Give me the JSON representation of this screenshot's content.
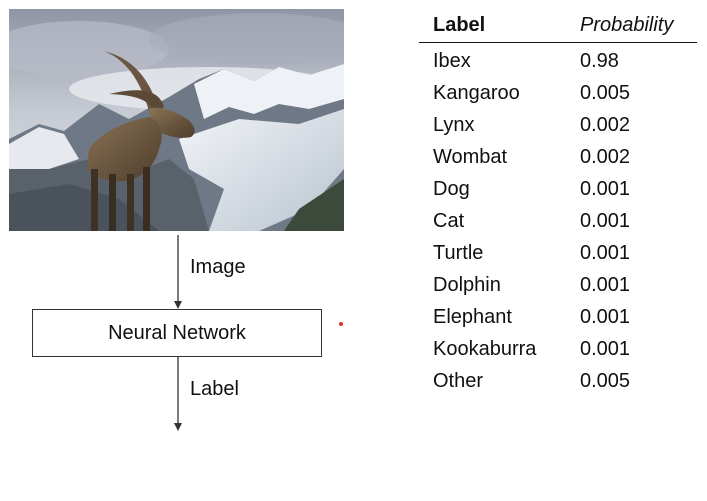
{
  "diagram": {
    "edge_image_label": "Image",
    "node_label": "Neural Network",
    "edge_output_label": "Label",
    "accent_dot_color": "#e0302a"
  },
  "table": {
    "headers": [
      "Label",
      "Probability"
    ],
    "rows": [
      {
        "label": "Ibex",
        "probability": "0.98"
      },
      {
        "label": "Kangaroo",
        "probability": "0.005"
      },
      {
        "label": "Lynx",
        "probability": "0.002"
      },
      {
        "label": "Wombat",
        "probability": "0.002"
      },
      {
        "label": "Dog",
        "probability": "0.001"
      },
      {
        "label": "Cat",
        "probability": "0.001"
      },
      {
        "label": "Turtle",
        "probability": "0.001"
      },
      {
        "label": "Dolphin",
        "probability": "0.001"
      },
      {
        "label": "Elephant",
        "probability": "0.001"
      },
      {
        "label": "Kookaburra",
        "probability": "0.001"
      },
      {
        "label": "Other",
        "probability": "0.005"
      }
    ]
  }
}
